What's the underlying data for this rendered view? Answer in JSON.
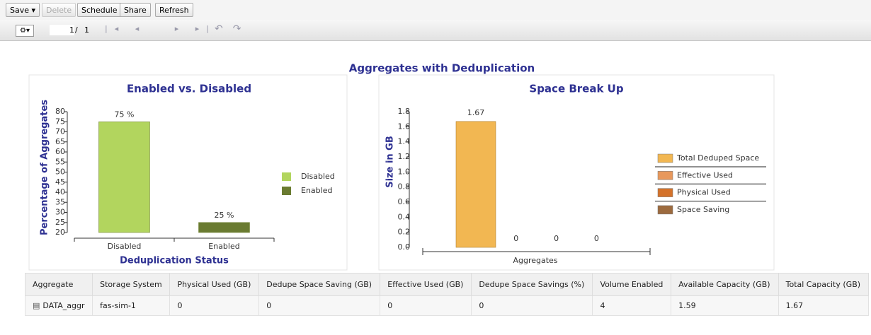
{
  "toolbar": {
    "buttons": [
      "Save",
      "Delete",
      "Schedule",
      "Share",
      "Refresh"
    ],
    "page_input": "1",
    "page_sep": "/",
    "page_count": "1"
  },
  "title": "Aggregates with Deduplication",
  "chart_data": [
    {
      "type": "bar",
      "title": "Enabled vs. Disabled",
      "xlabel": "Deduplication Status",
      "ylabel": "Percentage of Aggregates",
      "categories": [
        "Disabled",
        "Enabled"
      ],
      "values": [
        75,
        25
      ],
      "value_labels": [
        "75 %",
        "25 %"
      ],
      "colors": [
        "#b2d55e",
        "#6a7b31"
      ],
      "ylim": [
        20,
        80
      ],
      "yticks": [
        20,
        25,
        30,
        35,
        40,
        45,
        50,
        55,
        60,
        65,
        70,
        75,
        80
      ],
      "legend": "right"
    },
    {
      "type": "grouped-bar",
      "title": "Space Break Up",
      "xlabel": "Aggregates",
      "ylabel": "Size in GB",
      "series": [
        {
          "name": "Total Deduped Space",
          "color": "#f2b752",
          "values": [
            1.67
          ]
        },
        {
          "name": "Effective Used",
          "color": "#e8985c",
          "values": [
            0
          ]
        },
        {
          "name": "Physical Used",
          "color": "#d4722a",
          "values": [
            0
          ]
        },
        {
          "name": "Space Saving",
          "color": "#9c6a3e",
          "values": [
            0
          ]
        }
      ],
      "ylim": [
        0,
        1.8
      ],
      "yticks": [
        {
          "value": 0,
          "label": "0.0"
        },
        0.2,
        0.4,
        0.6,
        0.8,
        {
          "value": 1,
          "label": "1.0"
        },
        1.2,
        1.4,
        1.6,
        1.8
      ],
      "legend": "right"
    }
  ],
  "table": {
    "headers": [
      "Aggregate",
      "Storage System",
      "Physical Used (GB)",
      "Dedupe Space Saving (GB)",
      "Effective Used (GB)",
      "Dedupe Space Savings (%)",
      "Volume Enabled",
      "Available Capacity (GB)",
      "Total Capacity (GB)"
    ],
    "rows": [
      [
        "DATA_aggr",
        "fas-sim-1",
        "0",
        "0",
        "0",
        "0",
        "4",
        "1.59",
        "1.67"
      ]
    ]
  }
}
